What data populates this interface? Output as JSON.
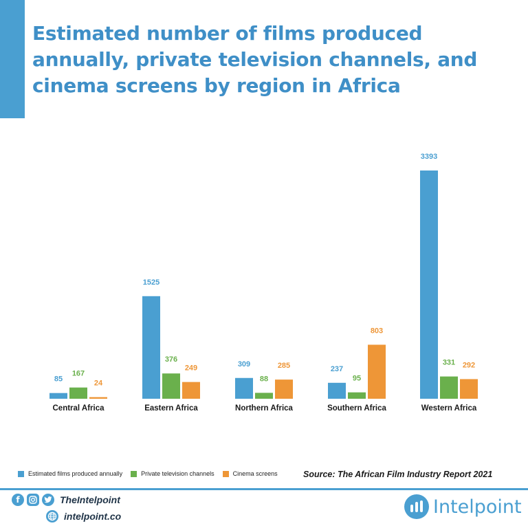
{
  "title_lines": [
    "Estimated number of films produced",
    "annually, private television channels, and",
    "cinema screens by region in Africa"
  ],
  "colors": {
    "title": "#3f8fc7",
    "accent": "#4a9fd1",
    "films": "#4a9fd1",
    "tv": "#6ab04c",
    "cinema": "#ee9637"
  },
  "source": "Source: The African Film Industry Report 2021",
  "footer": {
    "handle": "TheIntelpoint",
    "website": "intelpoint.co",
    "brand": "Intelpoint",
    "icons": [
      "facebook-icon",
      "instagram-icon",
      "twitter-icon",
      "globe-icon"
    ]
  },
  "chart_data": {
    "type": "bar",
    "title": "Estimated number of films produced annually, private television channels, and cinema screens by region in Africa",
    "categories": [
      "Central Africa",
      "Eastern Africa",
      "Northern Africa",
      "Southern Africa",
      "Western Africa"
    ],
    "series": [
      {
        "name": "Estimated films produced annually",
        "values": [
          85,
          1525,
          309,
          237,
          3393
        ],
        "color": "#4a9fd1"
      },
      {
        "name": "Private television channels",
        "values": [
          167,
          376,
          88,
          95,
          331
        ],
        "color": "#6ab04c"
      },
      {
        "name": "Cinema screens",
        "values": [
          24,
          249,
          285,
          803,
          292
        ],
        "color": "#ee9637"
      }
    ],
    "ylim": [
      0,
      3393
    ],
    "grid": false,
    "legend": "bottom-left",
    "data_labels": true
  }
}
